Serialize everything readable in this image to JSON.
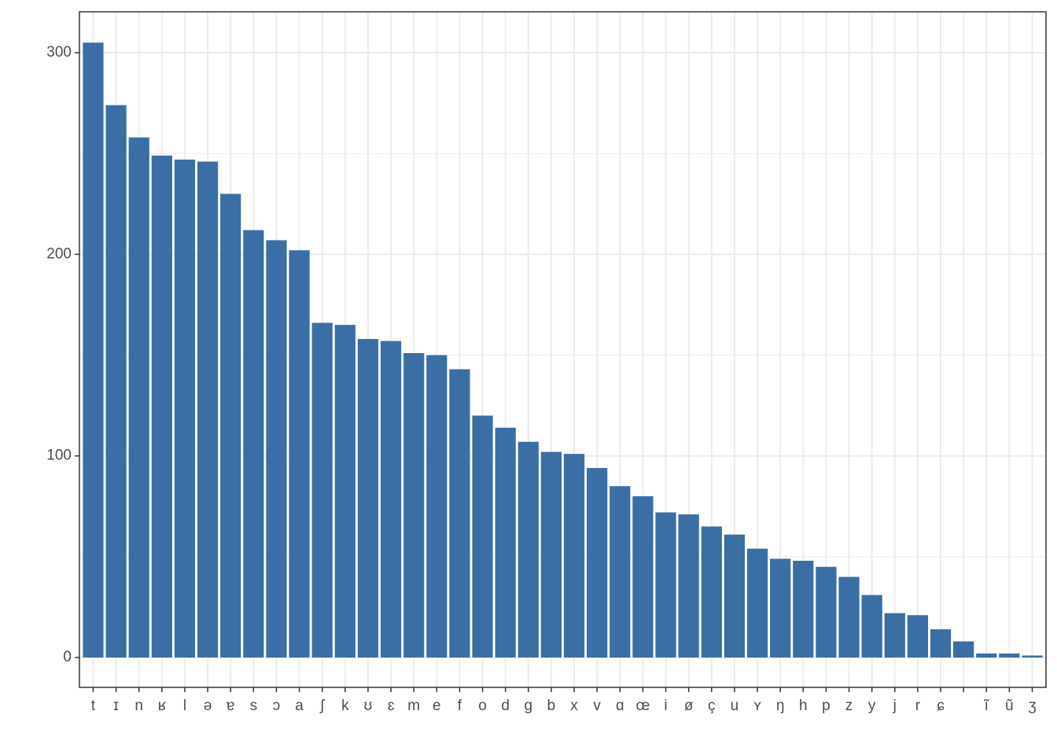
{
  "chart_data": {
    "type": "bar",
    "categories": [
      "t",
      "ɪ",
      "n",
      "ʁ",
      "l",
      "ə",
      "ɐ",
      "s",
      "ɔ",
      "a",
      "ʃ",
      "k",
      "ʊ",
      "ɛ",
      "m",
      "e",
      "f",
      "o",
      "d",
      "g",
      "b",
      "x",
      "v",
      "ɑ",
      "œ",
      "i",
      "ø",
      "ç",
      "u",
      "ʏ",
      "ŋ",
      "h",
      "p",
      "z",
      "y",
      "j",
      "r",
      "ɕ",
      null,
      "ĩ",
      "ũ",
      "ʒ"
    ],
    "values": [
      305,
      274,
      258,
      249,
      247,
      246,
      230,
      212,
      207,
      202,
      166,
      165,
      158,
      157,
      151,
      150,
      143,
      120,
      114,
      107,
      102,
      101,
      94,
      85,
      80,
      72,
      71,
      65,
      61,
      54,
      49,
      48,
      45,
      40,
      31,
      22,
      21,
      14,
      8,
      2,
      2,
      1
    ],
    "color": "#3a6ea5",
    "ylim": [
      -14.8,
      320.3
    ],
    "yticks": [
      0,
      100,
      200,
      300
    ],
    "minor_yticks": [
      50,
      150,
      250
    ],
    "grid": true
  }
}
